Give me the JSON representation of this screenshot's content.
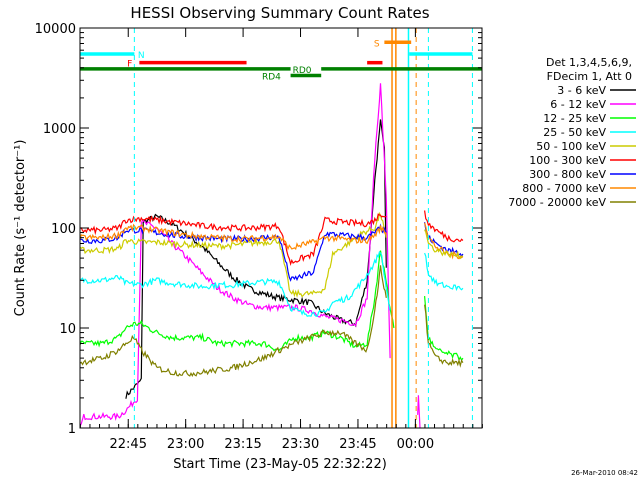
{
  "chart_data": {
    "type": "line",
    "title": "HESSI Observing Summary Count Rates",
    "xlabel": "Start Time (23-May-05 22:32:22)",
    "ylabel": "Count Rate (s⁻¹ detector⁻¹)",
    "yscale": "log",
    "ylim": [
      1,
      10000
    ],
    "x_unit": "minutes after 22:32:22",
    "xlim": [
      0,
      105
    ],
    "x_ticks": [
      {
        "x": 12.6,
        "label": "22:45"
      },
      {
        "x": 27.6,
        "label": "23:00"
      },
      {
        "x": 42.6,
        "label": "23:15"
      },
      {
        "x": 57.6,
        "label": "23:30"
      },
      {
        "x": 72.6,
        "label": "23:45"
      },
      {
        "x": 87.6,
        "label": "00:00"
      }
    ],
    "y_ticks": [
      {
        "v": 1,
        "label": "1"
      },
      {
        "v": 10,
        "label": "10"
      },
      {
        "v": 100,
        "label": "100"
      },
      {
        "v": 1000,
        "label": "1000"
      },
      {
        "v": 10000,
        "label": "10000"
      }
    ],
    "legend": {
      "position": "right",
      "header": [
        "Det 1,3,4,5,6,9,",
        "FDecim 1, Att 0"
      ]
    },
    "series": [
      {
        "name": "3 - 6 keV",
        "color": "#000000",
        "points": [
          [
            12,
            2.1
          ],
          [
            16,
            3
          ],
          [
            16.5,
            115
          ],
          [
            20,
            130
          ],
          [
            24,
            110
          ],
          [
            28,
            85
          ],
          [
            32,
            65
          ],
          [
            36,
            45
          ],
          [
            40,
            32
          ],
          [
            44,
            25
          ],
          [
            48,
            22
          ],
          [
            52,
            20
          ],
          [
            56,
            19
          ],
          [
            60,
            18
          ],
          [
            64,
            14
          ],
          [
            68,
            12
          ],
          [
            72,
            11
          ],
          [
            75,
            30
          ],
          [
            77,
            300
          ],
          [
            78.5,
            1150
          ],
          [
            79.5,
            600
          ],
          [
            80,
            40
          ]
        ]
      },
      {
        "name": "6 - 12 keV",
        "color": "#ff00ff",
        "points": [
          [
            0,
            1
          ],
          [
            1,
            1.3
          ],
          [
            10,
            1.3
          ],
          [
            12,
            1.5
          ],
          [
            15,
            2
          ],
          [
            16,
            115
          ],
          [
            20,
            100
          ],
          [
            24,
            70
          ],
          [
            28,
            50
          ],
          [
            32,
            35
          ],
          [
            36,
            25
          ],
          [
            40,
            20
          ],
          [
            44,
            17
          ],
          [
            48,
            16
          ],
          [
            52,
            16
          ],
          [
            56,
            16
          ],
          [
            60,
            15
          ],
          [
            64,
            13
          ],
          [
            68,
            12
          ],
          [
            72,
            11
          ],
          [
            75,
            20
          ],
          [
            77,
            500
          ],
          [
            78.5,
            2700
          ],
          [
            80,
            200
          ],
          [
            81,
            5
          ]
        ]
      },
      {
        "name": "12 - 25 keV",
        "color": "#00ff00",
        "points": [
          [
            0,
            7
          ],
          [
            6,
            7
          ],
          [
            10,
            8
          ],
          [
            12,
            10
          ],
          [
            14,
            11
          ],
          [
            16,
            11
          ],
          [
            20,
            9
          ],
          [
            24,
            8
          ],
          [
            28,
            8
          ],
          [
            32,
            8
          ],
          [
            36,
            7
          ],
          [
            40,
            7
          ],
          [
            44,
            7
          ],
          [
            48,
            7
          ],
          [
            52,
            6
          ],
          [
            56,
            8
          ],
          [
            60,
            8
          ],
          [
            64,
            9
          ],
          [
            68,
            8
          ],
          [
            72,
            6.5
          ],
          [
            75,
            7
          ],
          [
            77,
            20
          ],
          [
            78.5,
            60
          ],
          [
            80,
            30
          ],
          [
            81,
            15
          ],
          [
            82,
            10
          ]
        ]
      },
      {
        "name": "25 - 50 keV",
        "color": "#00ffff",
        "points": [
          [
            0,
            30
          ],
          [
            6,
            30
          ],
          [
            10,
            32
          ],
          [
            12,
            28
          ],
          [
            16,
            27
          ],
          [
            20,
            30
          ],
          [
            24,
            28
          ],
          [
            28,
            27
          ],
          [
            32,
            26
          ],
          [
            36,
            27
          ],
          [
            40,
            27
          ],
          [
            44,
            28
          ],
          [
            48,
            29
          ],
          [
            52,
            29
          ],
          [
            55,
            16
          ],
          [
            58,
            14
          ],
          [
            61,
            14
          ],
          [
            64,
            14
          ],
          [
            66,
            18
          ],
          [
            70,
            20
          ],
          [
            74,
            30
          ],
          [
            77,
            45
          ],
          [
            78.5,
            60
          ],
          [
            80,
            25
          ],
          [
            81,
            15
          ]
        ]
      },
      {
        "name": "50 - 100 keV",
        "color": "#cccc00",
        "points": [
          [
            0,
            60
          ],
          [
            6,
            60
          ],
          [
            10,
            62
          ],
          [
            12,
            75
          ],
          [
            16,
            72
          ],
          [
            20,
            72
          ],
          [
            24,
            70
          ],
          [
            28,
            68
          ],
          [
            32,
            67
          ],
          [
            36,
            66
          ],
          [
            40,
            67
          ],
          [
            44,
            70
          ],
          [
            48,
            72
          ],
          [
            52,
            75
          ],
          [
            55,
            22
          ],
          [
            58,
            22
          ],
          [
            61,
            22
          ],
          [
            64,
            25
          ],
          [
            66,
            55
          ],
          [
            70,
            70
          ],
          [
            74,
            90
          ],
          [
            77,
            100
          ],
          [
            78.5,
            140
          ],
          [
            80,
            80
          ]
        ]
      },
      {
        "name": "100 - 300 keV",
        "color": "#ff0000",
        "points": [
          [
            0,
            95
          ],
          [
            6,
            95
          ],
          [
            10,
            100
          ],
          [
            12,
            120
          ],
          [
            16,
            125
          ],
          [
            20,
            120
          ],
          [
            24,
            115
          ],
          [
            28,
            110
          ],
          [
            32,
            105
          ],
          [
            36,
            102
          ],
          [
            40,
            100
          ],
          [
            44,
            100
          ],
          [
            48,
            102
          ],
          [
            52,
            105
          ],
          [
            55,
            45
          ],
          [
            58,
            50
          ],
          [
            61,
            55
          ],
          [
            64,
            120
          ],
          [
            68,
            115
          ],
          [
            72,
            112
          ],
          [
            75,
            110
          ],
          [
            77,
            120
          ],
          [
            78.5,
            140
          ],
          [
            80,
            130
          ]
        ]
      },
      {
        "name": "300 - 800 keV",
        "color": "#0000ff",
        "points": [
          [
            0,
            75
          ],
          [
            6,
            75
          ],
          [
            10,
            80
          ],
          [
            12,
            95
          ],
          [
            16,
            95
          ],
          [
            20,
            90
          ],
          [
            24,
            85
          ],
          [
            28,
            82
          ],
          [
            32,
            80
          ],
          [
            36,
            78
          ],
          [
            40,
            78
          ],
          [
            44,
            78
          ],
          [
            48,
            80
          ],
          [
            52,
            82
          ],
          [
            55,
            30
          ],
          [
            58,
            33
          ],
          [
            61,
            36
          ],
          [
            64,
            88
          ],
          [
            68,
            85
          ],
          [
            72,
            82
          ],
          [
            75,
            80
          ],
          [
            77,
            90
          ],
          [
            78.5,
            100
          ],
          [
            80,
            90
          ]
        ]
      },
      {
        "name": "800 - 7000 keV",
        "color": "#ff8800",
        "points": [
          [
            0,
            80
          ],
          [
            6,
            80
          ],
          [
            10,
            85
          ],
          [
            12,
            100
          ],
          [
            16,
            100
          ],
          [
            20,
            95
          ],
          [
            24,
            90
          ],
          [
            28,
            85
          ],
          [
            32,
            82
          ],
          [
            36,
            80
          ],
          [
            40,
            78
          ],
          [
            44,
            78
          ],
          [
            48,
            80
          ],
          [
            52,
            82
          ],
          [
            55,
            62
          ],
          [
            58,
            68
          ],
          [
            61,
            72
          ],
          [
            64,
            80
          ],
          [
            68,
            78
          ],
          [
            72,
            75
          ],
          [
            75,
            75
          ],
          [
            77,
            85
          ],
          [
            78.5,
            100
          ],
          [
            80,
            90
          ]
        ]
      },
      {
        "name": "7000 - 20000 keV",
        "color": "#808000",
        "points": [
          [
            0,
            4.5
          ],
          [
            6,
            5
          ],
          [
            10,
            6
          ],
          [
            12,
            7
          ],
          [
            14,
            8
          ],
          [
            16,
            6
          ],
          [
            20,
            4
          ],
          [
            24,
            3.6
          ],
          [
            28,
            3.5
          ],
          [
            32,
            3.6
          ],
          [
            36,
            3.8
          ],
          [
            40,
            4
          ],
          [
            44,
            4.5
          ],
          [
            48,
            5
          ],
          [
            52,
            6
          ],
          [
            56,
            7
          ],
          [
            60,
            8
          ],
          [
            64,
            9
          ],
          [
            68,
            9
          ],
          [
            72,
            7
          ],
          [
            75,
            6
          ],
          [
            77,
            15
          ],
          [
            78.5,
            40
          ],
          [
            80,
            20
          ]
        ]
      }
    ],
    "post_gap_series": [
      {
        "color": "#ff0000",
        "points": [
          [
            90,
            140
          ],
          [
            91,
            110
          ],
          [
            93,
            95
          ],
          [
            96,
            80
          ],
          [
            100,
            75
          ]
        ]
      },
      {
        "color": "#0000ff",
        "points": [
          [
            90,
            110
          ],
          [
            91,
            80
          ],
          [
            93,
            70
          ],
          [
            96,
            60
          ],
          [
            100,
            55
          ]
        ]
      },
      {
        "color": "#ff8800",
        "points": [
          [
            90,
            120
          ],
          [
            91,
            80
          ],
          [
            93,
            65
          ],
          [
            96,
            55
          ],
          [
            100,
            52
          ]
        ]
      },
      {
        "color": "#cccc00",
        "points": [
          [
            90,
            100
          ],
          [
            91,
            70
          ],
          [
            93,
            60
          ],
          [
            96,
            55
          ],
          [
            100,
            52
          ]
        ]
      },
      {
        "color": "#00ffff",
        "points": [
          [
            90,
            60
          ],
          [
            91,
            35
          ],
          [
            93,
            28
          ],
          [
            96,
            26
          ],
          [
            100,
            25
          ]
        ]
      },
      {
        "color": "#00ff00",
        "points": [
          [
            90,
            20
          ],
          [
            91,
            8
          ],
          [
            93,
            6
          ],
          [
            96,
            5.5
          ],
          [
            100,
            5
          ]
        ]
      },
      {
        "color": "#808000",
        "points": [
          [
            90,
            18
          ],
          [
            91,
            7
          ],
          [
            93,
            5
          ],
          [
            96,
            4.5
          ],
          [
            100,
            4.5
          ]
        ]
      },
      {
        "color": "#ff00ff",
        "points": [
          [
            88.2,
            1.3
          ],
          [
            88.4,
            2
          ],
          [
            88.8,
            1
          ]
        ]
      }
    ],
    "vertical_lines": [
      {
        "x": 14.2,
        "color": "#00ffff",
        "style": "dashed"
      },
      {
        "x": 81.5,
        "color": "#ff8800",
        "style": "solid"
      },
      {
        "x": 82.5,
        "color": "#ff8800",
        "style": "solid"
      },
      {
        "x": 85.8,
        "color": "#00ffff",
        "style": "solid"
      },
      {
        "x": 87.8,
        "color": "#ff8800",
        "style": "dashed"
      },
      {
        "x": 91.0,
        "color": "#00ffff",
        "style": "dashed"
      },
      {
        "x": 102.5,
        "color": "#00ffff",
        "style": "dashed"
      }
    ],
    "flag_bars": [
      {
        "label": "N",
        "color": "#00ffff",
        "y": 5500,
        "segments": [
          [
            0,
            14.2
          ],
          [
            86,
            102.5
          ]
        ],
        "label_x": 16
      },
      {
        "label": "F",
        "color": "#ff0000",
        "y": 4500,
        "segments": [
          [
            15.5,
            43.5
          ],
          [
            75,
            79
          ]
        ],
        "label_x": 13
      },
      {
        "label": "RD0",
        "color": "#008000",
        "y": 3900,
        "segments": [
          [
            0,
            55
          ],
          [
            63,
            105
          ]
        ],
        "label_x": 58
      },
      {
        "label": "RD4",
        "color": "#008000",
        "y": 3350,
        "segments": [
          [
            55,
            63
          ]
        ],
        "label_x": 50
      },
      {
        "label": "S",
        "color": "#ff8800",
        "y": 7200,
        "segments": [
          [
            79.5,
            86.5
          ]
        ],
        "label_x": 77.5
      }
    ],
    "timestamp": "26-Mar-2010 08:42"
  }
}
